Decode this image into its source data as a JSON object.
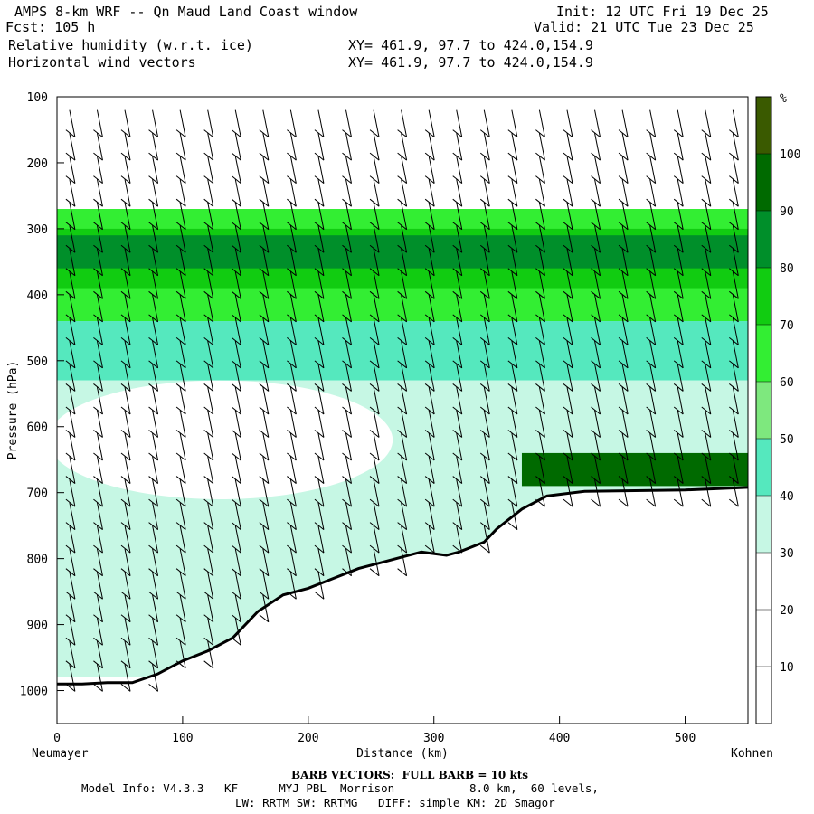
{
  "header": {
    "title": "AMPS 8-km WRF -- Qn Maud Land Coast window",
    "forecast": "Fcst: 105 h",
    "init": "Init: 12 UTC Fri 19 Dec 25",
    "valid": "Valid: 21 UTC Tue 23 Dec 25",
    "field1": "Relative humidity (w.r.t. ice)",
    "field1_xy": "XY= 461.9, 97.7 to 424.0,154.9",
    "field2": "Horizontal wind vectors",
    "field2_xy": "XY= 461.9, 97.7 to 424.0,154.9"
  },
  "chart_data": {
    "type": "heatmap",
    "title": "Relative humidity (w.r.t. ice) and horizontal wind vectors, cross-section",
    "xlabel": "Distance (km)",
    "ylabel": "Pressure (hPa)",
    "xlim": [
      0,
      550
    ],
    "ylim": [
      1050,
      100
    ],
    "x_ticks": [
      0,
      100,
      200,
      300,
      400,
      500
    ],
    "y_ticks": [
      100,
      200,
      300,
      400,
      500,
      600,
      700,
      800,
      900,
      1000
    ],
    "x_endpoints": {
      "left": "Neumayer",
      "right": "Kohnen"
    },
    "colorbar": {
      "unit": "%",
      "levels": [
        10,
        20,
        30,
        40,
        50,
        60,
        70,
        80,
        90,
        100
      ],
      "colors": [
        "#ffffff",
        "#ffffff",
        "#ffffff",
        "#c6f7e4",
        "#55e8be",
        "#7ee87e",
        "#33ee33",
        "#11cc11",
        "#008f2a",
        "#006a00",
        "#3a5a00"
      ]
    },
    "terrain_surface_pressure": [
      [
        0,
        990
      ],
      [
        20,
        990
      ],
      [
        40,
        988
      ],
      [
        60,
        988
      ],
      [
        80,
        975
      ],
      [
        100,
        955
      ],
      [
        120,
        940
      ],
      [
        140,
        920
      ],
      [
        160,
        880
      ],
      [
        180,
        855
      ],
      [
        200,
        845
      ],
      [
        220,
        830
      ],
      [
        240,
        815
      ],
      [
        260,
        805
      ],
      [
        280,
        795
      ],
      [
        290,
        790
      ],
      [
        310,
        795
      ],
      [
        320,
        790
      ],
      [
        340,
        775
      ],
      [
        350,
        755
      ],
      [
        370,
        725
      ],
      [
        390,
        705
      ],
      [
        420,
        698
      ],
      [
        460,
        697
      ],
      [
        500,
        696
      ],
      [
        550,
        692
      ]
    ],
    "rh_layers": [
      {
        "p_top": 270,
        "p_bot": 440,
        "rh": 60
      },
      {
        "p_top": 300,
        "p_bot": 390,
        "rh": 75
      },
      {
        "p_top": 310,
        "p_bot": 360,
        "rh": 85
      },
      {
        "p_top": 440,
        "p_bot": 530,
        "rh": 45
      },
      {
        "p_top": 530,
        "p_bot": 980,
        "rh": 35
      },
      {
        "p_top": 640,
        "p_bot": 690,
        "rh": 90
      }
    ],
    "barb_note": "BARB VECTORS:  FULL BARB = 10 kts"
  },
  "footer": {
    "barb_note": "BARB VECTORS:  FULL BARB = 10 kts",
    "model_line1": "Model Info: V4.3.3   KF      MYJ PBL  Morrison           8.0 km,  60 levels,",
    "model_line2": "LW: RRTM SW: RRTMG   DIFF: simple KM: 2D Smagor"
  }
}
